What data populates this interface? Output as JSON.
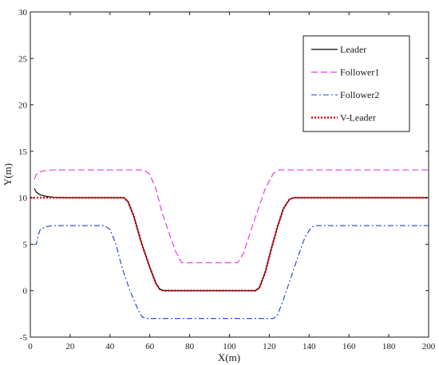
{
  "chart_data": {
    "type": "line",
    "xlabel": "X(m)",
    "ylabel": "Y(m)",
    "xlim": [
      0,
      200
    ],
    "ylim": [
      -5,
      30
    ],
    "xticks": [
      0,
      20,
      40,
      60,
      80,
      100,
      120,
      140,
      160,
      180,
      200
    ],
    "yticks": [
      -5,
      0,
      5,
      10,
      15,
      20,
      25,
      30
    ],
    "grid": false,
    "legend_position": "top-right",
    "series": [
      {
        "name": "Leader",
        "color": "#000000",
        "style": "solid",
        "points": [
          [
            2,
            11
          ],
          [
            3,
            10.6
          ],
          [
            5,
            10.3
          ],
          [
            8,
            10.15
          ],
          [
            12,
            10.05
          ],
          [
            20,
            10
          ],
          [
            47,
            10
          ],
          [
            49,
            9.6
          ],
          [
            52,
            8
          ],
          [
            56,
            5
          ],
          [
            60,
            2.5
          ],
          [
            63,
            0.8
          ],
          [
            65,
            0.15
          ],
          [
            67,
            0
          ],
          [
            113,
            0
          ],
          [
            115,
            0.3
          ],
          [
            118,
            2
          ],
          [
            121,
            4.5
          ],
          [
            124,
            6.8
          ],
          [
            127,
            8.8
          ],
          [
            130,
            9.8
          ],
          [
            132,
            10
          ],
          [
            200,
            10
          ]
        ]
      },
      {
        "name": "Follower1",
        "color": "#e23ee8",
        "style": "dashed",
        "points": [
          [
            2,
            12
          ],
          [
            3,
            12.5
          ],
          [
            5,
            12.8
          ],
          [
            8,
            12.95
          ],
          [
            12,
            13
          ],
          [
            57,
            13
          ],
          [
            60,
            12.5
          ],
          [
            63,
            11
          ],
          [
            66,
            8.5
          ],
          [
            70,
            6
          ],
          [
            73,
            4.2
          ],
          [
            76,
            3
          ],
          [
            104,
            3
          ],
          [
            107,
            4
          ],
          [
            110,
            6
          ],
          [
            114,
            8.5
          ],
          [
            118,
            11
          ],
          [
            122,
            12.6
          ],
          [
            125,
            13
          ],
          [
            200,
            13
          ]
        ]
      },
      {
        "name": "Follower2",
        "color": "#1f3ccf",
        "style": "dashdot",
        "points": [
          [
            2,
            5
          ],
          [
            3,
            5
          ],
          [
            4,
            6
          ],
          [
            5,
            6.6
          ],
          [
            8,
            6.9
          ],
          [
            12,
            7
          ],
          [
            37,
            7
          ],
          [
            40,
            6.6
          ],
          [
            43,
            5
          ],
          [
            46,
            2.5
          ],
          [
            50,
            0
          ],
          [
            54,
            -2
          ],
          [
            56,
            -2.8
          ],
          [
            58,
            -3
          ],
          [
            122,
            -3
          ],
          [
            124,
            -2.7
          ],
          [
            127,
            -1
          ],
          [
            131,
            1.5
          ],
          [
            135,
            4
          ],
          [
            138,
            5.8
          ],
          [
            141,
            6.8
          ],
          [
            143,
            7
          ],
          [
            200,
            7
          ]
        ]
      },
      {
        "name": "V-Leader",
        "color": "#e00000",
        "style": "dotted",
        "points": [
          [
            0,
            10
          ],
          [
            47,
            10
          ],
          [
            49,
            9.6
          ],
          [
            52,
            8
          ],
          [
            56,
            5
          ],
          [
            60,
            2.5
          ],
          [
            63,
            0.8
          ],
          [
            65,
            0.15
          ],
          [
            67,
            0
          ],
          [
            113,
            0
          ],
          [
            115,
            0.3
          ],
          [
            118,
            2
          ],
          [
            121,
            4.5
          ],
          [
            124,
            6.8
          ],
          [
            127,
            8.8
          ],
          [
            130,
            9.8
          ],
          [
            132,
            10
          ],
          [
            200,
            10
          ]
        ]
      }
    ]
  }
}
